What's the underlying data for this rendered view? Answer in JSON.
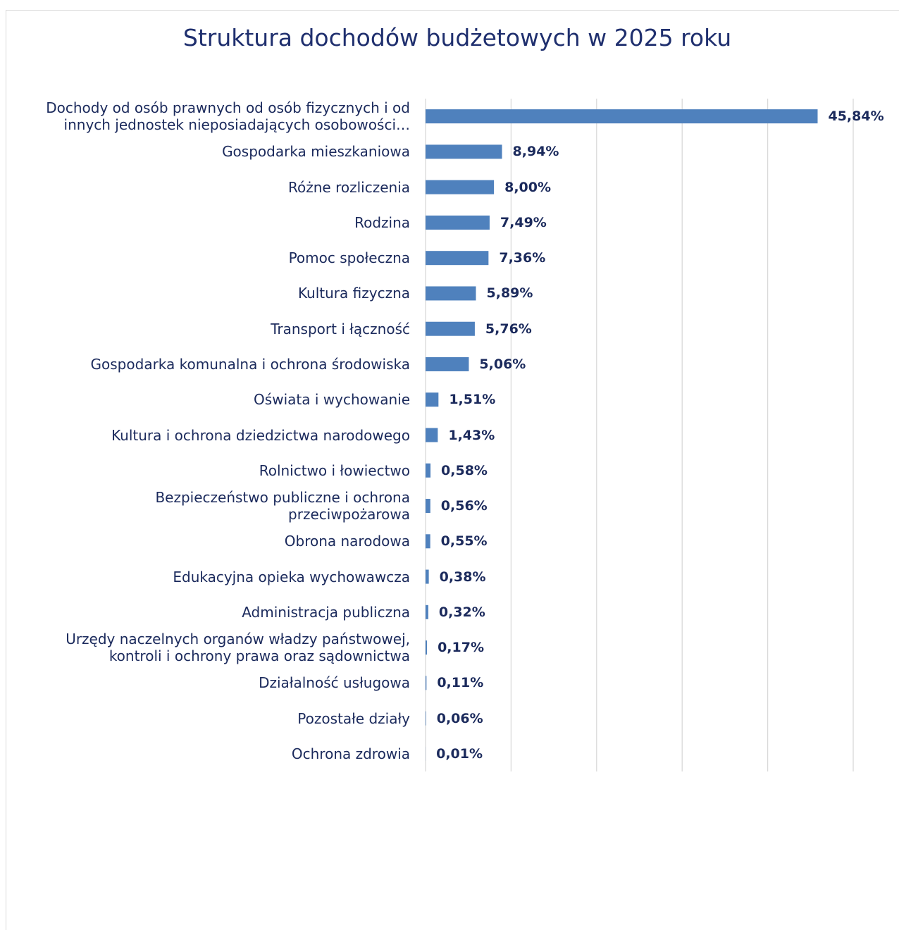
{
  "chart_data": {
    "type": "bar",
    "orientation": "horizontal",
    "title": "Struktura dochodów budżetowych w 2025 roku",
    "categories": [
      "Dochody od osób prawnych od osób fizycznych i od\ninnych jednostek nieposiadających osobowości…",
      "Gospodarka mieszkaniowa",
      "Różne rozliczenia",
      "Rodzina",
      "Pomoc społeczna",
      "Kultura fizyczna",
      "Transport i łączność",
      "Gospodarka komunalna i ochrona środowiska",
      "Oświata i wychowanie",
      "Kultura i ochrona dziedzictwa narodowego",
      "Rolnictwo i łowiectwo",
      "Bezpieczeństwo publiczne i ochrona\nprzeciwpożarowa",
      "Obrona narodowa",
      "Edukacyjna opieka wychowawcza",
      "Administracja publiczna",
      "Urzędy naczelnych organów władzy państwowej,\nkontroli i ochrony prawa oraz sądownictwa",
      "Działalność usługowa",
      "Pozostałe działy",
      "Ochrona zdrowia"
    ],
    "values": [
      45.84,
      8.94,
      8.0,
      7.49,
      7.36,
      5.89,
      5.76,
      5.06,
      1.51,
      1.43,
      0.58,
      0.56,
      0.55,
      0.38,
      0.32,
      0.17,
      0.11,
      0.06,
      0.01
    ],
    "value_labels": [
      "45,84%",
      "8,94%",
      "8,00%",
      "7,49%",
      "7,36%",
      "5,89%",
      "5,76%",
      "5,06%",
      "1,51%",
      "1,43%",
      "0,58%",
      "0,56%",
      "0,55%",
      "0,38%",
      "0,32%",
      "0,17%",
      "0,11%",
      "0,06%",
      "0,01%"
    ],
    "color": "#4f81bd",
    "xlim": [
      0,
      50
    ],
    "xticks": [
      0,
      10,
      20,
      30,
      40,
      50
    ],
    "grid": true
  }
}
